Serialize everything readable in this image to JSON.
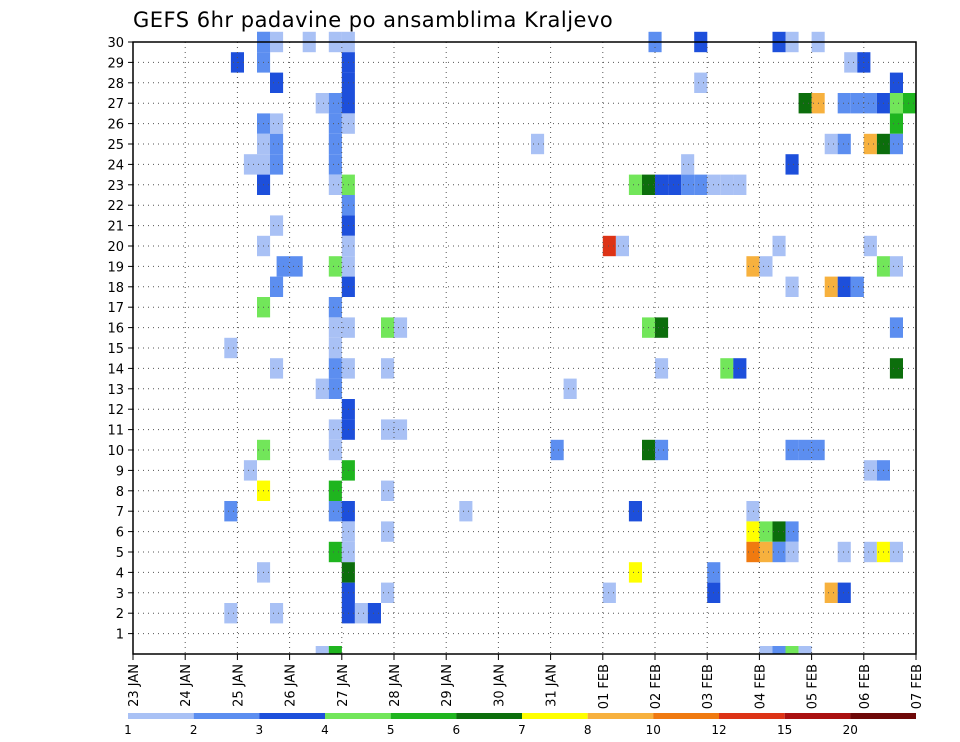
{
  "chart_data": {
    "type": "heatmap",
    "title": "GEFS 6hr padavine po ansamblima Kraljevo",
    "x_ticks": [
      "23 JAN",
      "24 JAN",
      "25 JAN",
      "26 JAN",
      "27 JAN",
      "28 JAN",
      "29 JAN",
      "30 JAN",
      "31 JAN",
      "01 FEB",
      "02 FEB",
      "03 FEB",
      "04 FEB",
      "05 FEB",
      "06 FEB",
      "07 FEB"
    ],
    "y_ticks": [
      1,
      2,
      3,
      4,
      5,
      6,
      7,
      8,
      9,
      10,
      11,
      12,
      13,
      14,
      15,
      16,
      17,
      18,
      19,
      20,
      21,
      22,
      23,
      24,
      25,
      26,
      27,
      28,
      29,
      30
    ],
    "x_range_days": [
      0,
      15
    ],
    "y_range_members": [
      0,
      30
    ],
    "step_days": 0.25,
    "grid": true,
    "legend_position": "bottom",
    "colorbar": {
      "labels": [
        "1",
        "2",
        "3",
        "4",
        "5",
        "6",
        "7",
        "8",
        "10",
        "12",
        "15",
        "20"
      ],
      "colors": [
        "#a9c1f5",
        "#5c8ef0",
        "#1d4fdb",
        "#72e65a",
        "#1fb51f",
        "#0c6e0c",
        "#ffff00",
        "#f7b13e",
        "#f07a10",
        "#dd3316",
        "#aa1010",
        "#6e0808"
      ]
    },
    "cells_note": "each cell: [day_offset_from_23JAN, ensemble_member, color_class 1..12]",
    "cells": [
      [
        2.5,
        30,
        1
      ],
      [
        2.5,
        30,
        2
      ],
      [
        2.75,
        30,
        1
      ],
      [
        3.375,
        30,
        1
      ],
      [
        3.875,
        30,
        1
      ],
      [
        4.125,
        30,
        1
      ],
      [
        10.0,
        30,
        2
      ],
      [
        10.875,
        30,
        3
      ],
      [
        12.375,
        30,
        3
      ],
      [
        12.625,
        30,
        1
      ],
      [
        13.125,
        30,
        1
      ],
      [
        2.0,
        29,
        3
      ],
      [
        2.5,
        29,
        2
      ],
      [
        4.125,
        29,
        3
      ],
      [
        13.75,
        29,
        1
      ],
      [
        14.0,
        29,
        3
      ],
      [
        2.75,
        28,
        3
      ],
      [
        4.125,
        28,
        3
      ],
      [
        10.875,
        28,
        1
      ],
      [
        14.625,
        28,
        3
      ],
      [
        3.625,
        27,
        1
      ],
      [
        3.875,
        27,
        2
      ],
      [
        4.125,
        27,
        3
      ],
      [
        12.875,
        27,
        6
      ],
      [
        13.125,
        27,
        8
      ],
      [
        13.625,
        27,
        2
      ],
      [
        13.875,
        27,
        2
      ],
      [
        14.125,
        27,
        2
      ],
      [
        14.375,
        27,
        3
      ],
      [
        14.625,
        27,
        4
      ],
      [
        14.875,
        27,
        5
      ],
      [
        2.5,
        26,
        2
      ],
      [
        2.75,
        26,
        1
      ],
      [
        3.875,
        26,
        2
      ],
      [
        4.125,
        26,
        1
      ],
      [
        14.625,
        26,
        5
      ],
      [
        2.5,
        25,
        1
      ],
      [
        2.75,
        25,
        2
      ],
      [
        3.875,
        25,
        2
      ],
      [
        7.75,
        25,
        1
      ],
      [
        13.375,
        25,
        1
      ],
      [
        13.625,
        25,
        2
      ],
      [
        14.125,
        25,
        8
      ],
      [
        14.375,
        25,
        6
      ],
      [
        14.625,
        25,
        2
      ],
      [
        2.25,
        24,
        1
      ],
      [
        2.5,
        24,
        1
      ],
      [
        2.75,
        24,
        2
      ],
      [
        3.875,
        24,
        2
      ],
      [
        10.625,
        24,
        1
      ],
      [
        12.625,
        24,
        3
      ],
      [
        2.5,
        23,
        3
      ],
      [
        3.875,
        23,
        1
      ],
      [
        4.125,
        23,
        4
      ],
      [
        9.625,
        23,
        4
      ],
      [
        9.875,
        23,
        6
      ],
      [
        10.125,
        23,
        3
      ],
      [
        10.375,
        23,
        3
      ],
      [
        10.625,
        23,
        2
      ],
      [
        10.875,
        23,
        2
      ],
      [
        11.125,
        23,
        1
      ],
      [
        11.375,
        23,
        1
      ],
      [
        11.625,
        23,
        1
      ],
      [
        4.125,
        22,
        2
      ],
      [
        4.125,
        21,
        3
      ],
      [
        2.75,
        21,
        1
      ],
      [
        2.5,
        20,
        1
      ],
      [
        4.125,
        20,
        1
      ],
      [
        9.125,
        20,
        10
      ],
      [
        9.375,
        20,
        1
      ],
      [
        12.375,
        20,
        1
      ],
      [
        14.125,
        20,
        1
      ],
      [
        2.875,
        19,
        2
      ],
      [
        3.125,
        19,
        2
      ],
      [
        3.875,
        19,
        4
      ],
      [
        4.125,
        19,
        1
      ],
      [
        11.875,
        19,
        8
      ],
      [
        12.125,
        19,
        1
      ],
      [
        14.375,
        19,
        4
      ],
      [
        14.625,
        19,
        1
      ],
      [
        2.75,
        18,
        2
      ],
      [
        4.125,
        18,
        3
      ],
      [
        12.625,
        18,
        1
      ],
      [
        13.375,
        18,
        8
      ],
      [
        13.625,
        18,
        3
      ],
      [
        13.875,
        18,
        2
      ],
      [
        2.5,
        17,
        4
      ],
      [
        3.875,
        17,
        2
      ],
      [
        3.875,
        16,
        1
      ],
      [
        4.125,
        16,
        1
      ],
      [
        4.875,
        16,
        4
      ],
      [
        5.125,
        16,
        1
      ],
      [
        9.875,
        16,
        4
      ],
      [
        10.125,
        16,
        6
      ],
      [
        14.625,
        16,
        2
      ],
      [
        1.875,
        15,
        1
      ],
      [
        3.875,
        15,
        1
      ],
      [
        2.75,
        14,
        1
      ],
      [
        3.875,
        14,
        2
      ],
      [
        4.125,
        14,
        1
      ],
      [
        4.875,
        14,
        1
      ],
      [
        10.125,
        14,
        1
      ],
      [
        11.375,
        14,
        4
      ],
      [
        11.625,
        14,
        3
      ],
      [
        14.625,
        14,
        6
      ],
      [
        3.625,
        13,
        1
      ],
      [
        3.875,
        13,
        2
      ],
      [
        8.375,
        13,
        1
      ],
      [
        4.125,
        12,
        3
      ],
      [
        3.875,
        11,
        1
      ],
      [
        4.125,
        11,
        3
      ],
      [
        4.875,
        11,
        1
      ],
      [
        5.125,
        11,
        1
      ],
      [
        2.5,
        10,
        4
      ],
      [
        3.875,
        10,
        1
      ],
      [
        8.125,
        10,
        2
      ],
      [
        9.875,
        10,
        6
      ],
      [
        10.125,
        10,
        2
      ],
      [
        12.625,
        10,
        2
      ],
      [
        12.875,
        10,
        2
      ],
      [
        13.125,
        10,
        2
      ],
      [
        2.25,
        9,
        1
      ],
      [
        4.125,
        9,
        5
      ],
      [
        14.125,
        9,
        1
      ],
      [
        14.375,
        9,
        2
      ],
      [
        2.5,
        8,
        7
      ],
      [
        3.875,
        8,
        5
      ],
      [
        4.875,
        8,
        1
      ],
      [
        1.875,
        7,
        2
      ],
      [
        3.875,
        7,
        2
      ],
      [
        4.125,
        7,
        3
      ],
      [
        6.375,
        7,
        1
      ],
      [
        9.625,
        7,
        3
      ],
      [
        11.875,
        7,
        1
      ],
      [
        4.125,
        6,
        1
      ],
      [
        4.875,
        6,
        1
      ],
      [
        11.875,
        6,
        7
      ],
      [
        12.125,
        6,
        4
      ],
      [
        12.375,
        6,
        6
      ],
      [
        12.625,
        6,
        2
      ],
      [
        3.875,
        5,
        5
      ],
      [
        4.125,
        5,
        1
      ],
      [
        11.875,
        5,
        9
      ],
      [
        12.125,
        5,
        8
      ],
      [
        12.375,
        5,
        2
      ],
      [
        12.625,
        5,
        1
      ],
      [
        13.625,
        5,
        1
      ],
      [
        14.125,
        5,
        1
      ],
      [
        14.375,
        5,
        7
      ],
      [
        14.625,
        5,
        1
      ],
      [
        2.5,
        4,
        1
      ],
      [
        4.125,
        4,
        6
      ],
      [
        11.125,
        4,
        2
      ],
      [
        9.625,
        4,
        7
      ],
      [
        4.125,
        3,
        3
      ],
      [
        4.875,
        3,
        1
      ],
      [
        9.125,
        3,
        1
      ],
      [
        11.125,
        3,
        3
      ],
      [
        13.375,
        3,
        8
      ],
      [
        13.625,
        3,
        3
      ],
      [
        1.875,
        2,
        1
      ],
      [
        2.75,
        2,
        1
      ],
      [
        4.125,
        2,
        3
      ],
      [
        4.375,
        2,
        1
      ],
      [
        4.625,
        2,
        3
      ]
    ],
    "bottom_strip_note": "cells at member 0 row (partial, below axis tick 1)",
    "bottom_strip": [
      [
        3.625,
        0,
        1
      ],
      [
        3.875,
        0,
        5
      ],
      [
        12.125,
        0,
        1
      ],
      [
        12.375,
        0,
        2
      ],
      [
        12.625,
        0,
        4
      ],
      [
        12.875,
        0,
        1
      ]
    ]
  }
}
